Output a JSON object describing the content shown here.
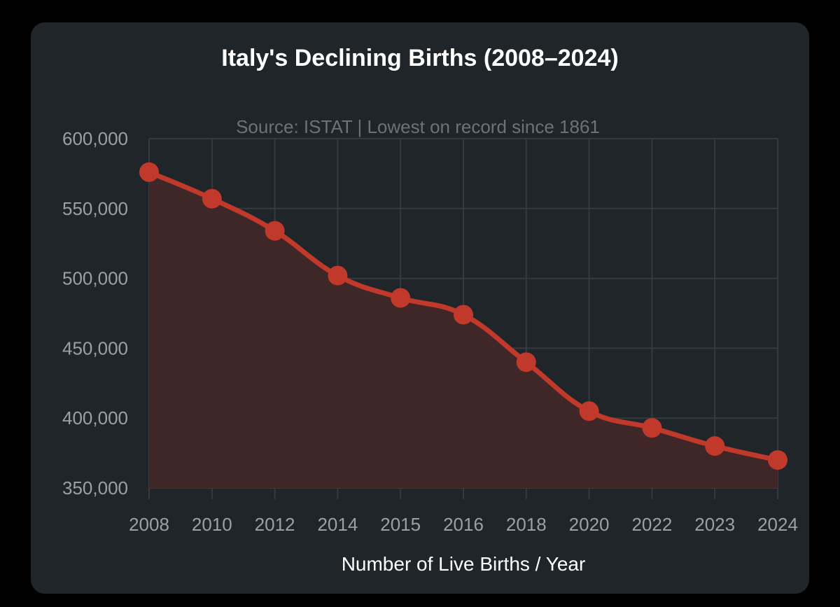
{
  "colors": {
    "background": "#000000",
    "card": "#1f2528",
    "line": "#c0392b",
    "fill": "#3f2627",
    "grid": "#343b3f",
    "tick_text": "#9aa1a5",
    "subtitle": "#6c7377"
  },
  "chart_data": {
    "type": "area",
    "title": "Italy's Declining Births (2008–2024)",
    "subtitle": "Source: ISTAT | Lowest on record since 1861",
    "xlabel": "Number of Live Births / Year",
    "ylabel": "",
    "categories": [
      "2008",
      "2010",
      "2012",
      "2014",
      "2015",
      "2016",
      "2018",
      "2020",
      "2022",
      "2023",
      "2024"
    ],
    "values": [
      576000,
      557000,
      534000,
      502000,
      486000,
      474000,
      440000,
      405000,
      393000,
      380000,
      370000
    ],
    "ylim": [
      350000,
      600000
    ],
    "yticks": [
      350000,
      400000,
      450000,
      500000,
      550000,
      600000
    ],
    "ytick_labels": [
      "350,000",
      "400,000",
      "450,000",
      "500,000",
      "550,000",
      "600,000"
    ],
    "grid": true,
    "legend": "none"
  }
}
